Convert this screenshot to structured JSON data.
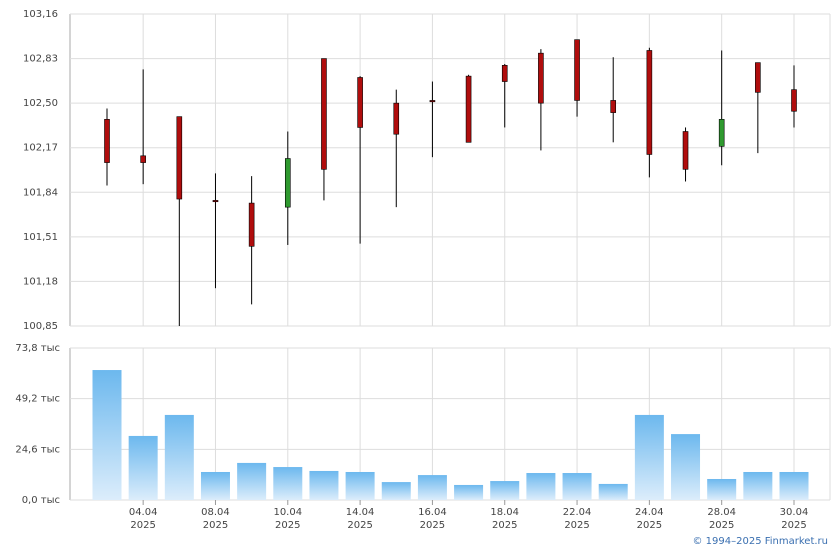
{
  "chart_data": {
    "type": "candlestick",
    "categories": [
      null,
      "04.04\n2025",
      null,
      "08.04\n2025",
      null,
      "10.04\n2025",
      null,
      "14.04\n2025",
      null,
      "16.04\n2025",
      null,
      "18.04\n2025",
      null,
      "22.04\n2025",
      null,
      "24.04\n2025",
      null,
      "28.04\n2025",
      null,
      "30.04\n2025"
    ],
    "open": [
      102.38,
      102.11,
      102.4,
      101.78,
      101.76,
      101.73,
      102.83,
      102.69,
      102.5,
      102.52,
      102.7,
      102.78,
      102.87,
      102.97,
      102.52,
      102.89,
      102.29,
      102.18,
      102.8,
      102.6
    ],
    "high": [
      102.46,
      102.75,
      102.4,
      101.98,
      101.96,
      102.29,
      102.83,
      102.7,
      102.6,
      102.66,
      102.71,
      102.79,
      102.9,
      102.97,
      102.84,
      102.91,
      102.32,
      102.89,
      102.8,
      102.78
    ],
    "low": [
      101.89,
      101.9,
      100.85,
      101.13,
      101.01,
      101.45,
      101.78,
      101.46,
      101.73,
      102.1,
      102.21,
      102.32,
      102.15,
      102.4,
      102.21,
      101.95,
      101.92,
      102.04,
      102.13,
      102.32
    ],
    "close": [
      102.06,
      102.06,
      101.79,
      101.77,
      101.44,
      102.09,
      102.01,
      102.32,
      102.27,
      102.51,
      102.21,
      102.66,
      102.5,
      102.52,
      102.43,
      102.12,
      102.01,
      102.38,
      102.58,
      102.44
    ],
    "up_color": "#2f9a2f",
    "down_color": "#b00d0d",
    "ylim": [
      100.85,
      103.16
    ],
    "yticks": [
      {
        "value": 100.85,
        "label": "100,85"
      },
      {
        "value": 101.18,
        "label": "101,18"
      },
      {
        "value": 101.51,
        "label": "101,51"
      },
      {
        "value": 101.84,
        "label": "101,84"
      },
      {
        "value": 102.17,
        "label": "102,17"
      },
      {
        "value": 102.5,
        "label": "102,50"
      },
      {
        "value": 102.83,
        "label": "102,83"
      },
      {
        "value": 103.16,
        "label": "103,16"
      }
    ],
    "grid": true,
    "volume": {
      "type": "bar",
      "color": "#6cb8ee",
      "values": [
        63.1,
        31.1,
        41.3,
        13.6,
        18.0,
        16.0,
        14.1,
        13.6,
        8.7,
        12.1,
        7.3,
        9.2,
        13.1,
        13.1,
        7.8,
        41.3,
        32.0,
        10.2,
        13.6,
        13.6
      ],
      "ylim": [
        0,
        73.8
      ],
      "yticks": [
        {
          "value": 0,
          "label": "0,0 тыс"
        },
        {
          "value": 24.6,
          "label": "24,6 тыс"
        },
        {
          "value": 49.2,
          "label": "49,2 тыс"
        },
        {
          "value": 73.8,
          "label": "73,8 тыс"
        }
      ]
    },
    "credit": "© 1994–2025 Finmarket.ru"
  }
}
